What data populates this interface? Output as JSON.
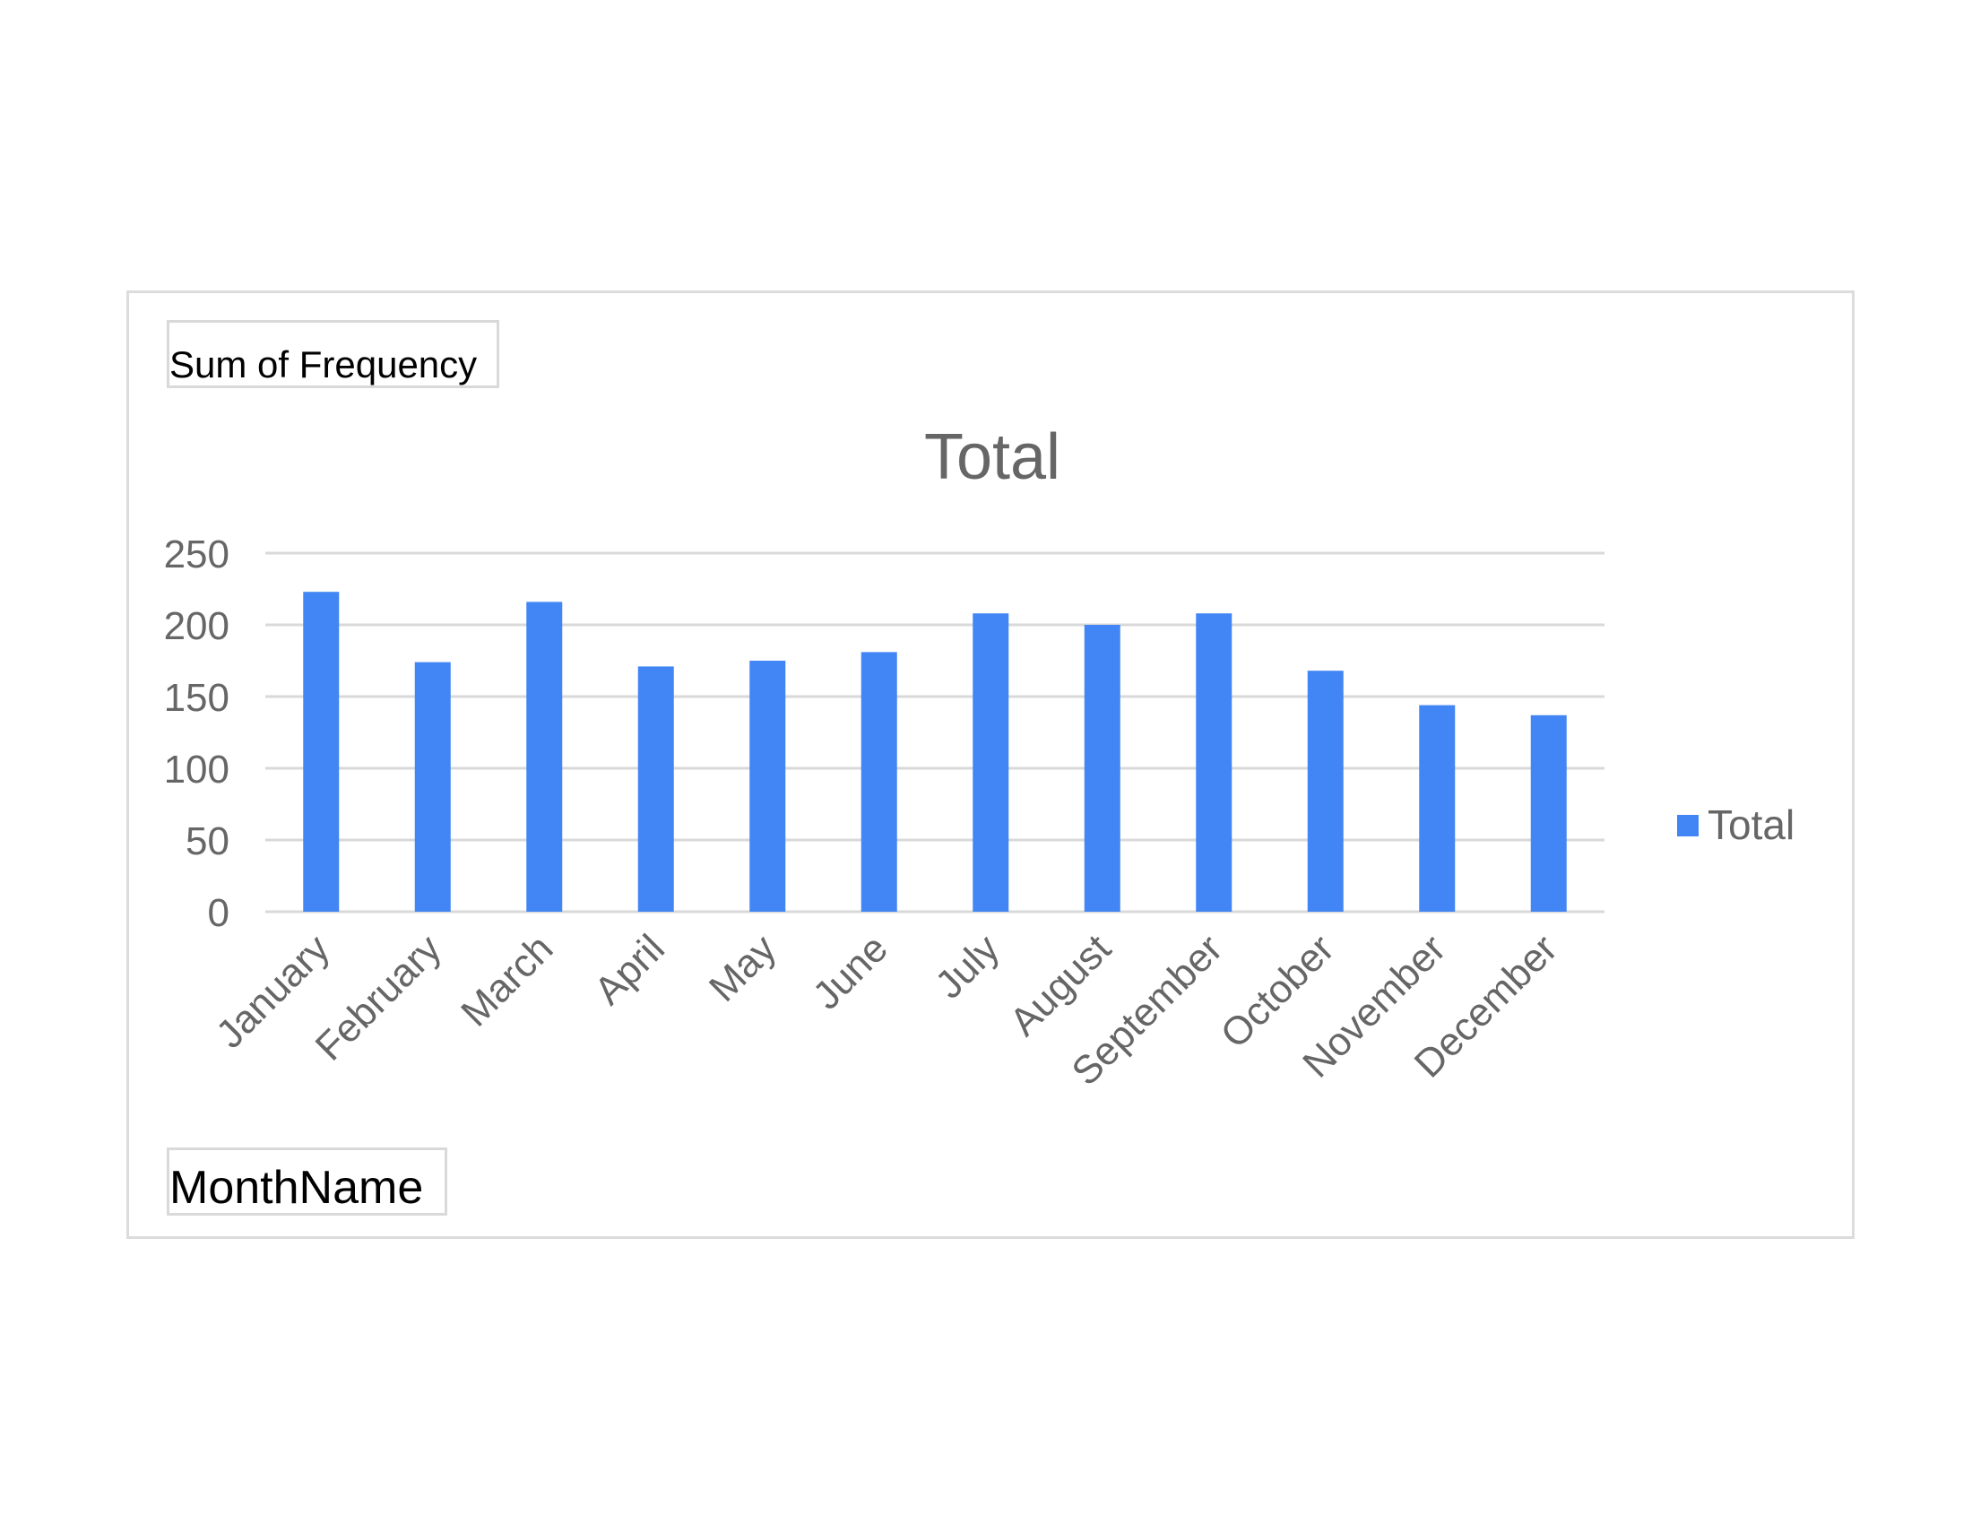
{
  "pivot": {
    "value_field_label": "Sum of Frequency",
    "axis_field_label": "MonthName"
  },
  "colors": {
    "bar": "#4285f4",
    "gridline": "#d9d9d9",
    "text": "#666666",
    "frame": "#dcdcdc"
  },
  "chart_data": {
    "type": "bar",
    "title": "Total",
    "categories": [
      "January",
      "February",
      "March",
      "April",
      "May",
      "June",
      "July",
      "August",
      "September",
      "October",
      "November",
      "December"
    ],
    "series": [
      {
        "name": "Total",
        "values": [
          223,
          174,
          216,
          171,
          175,
          181,
          208,
          200,
          208,
          168,
          144,
          137
        ]
      }
    ],
    "ylim": [
      0,
      250
    ],
    "yticks": [
      "0",
      "50",
      "100",
      "150",
      "200",
      "250"
    ],
    "grid": true,
    "legend_position": "right"
  }
}
